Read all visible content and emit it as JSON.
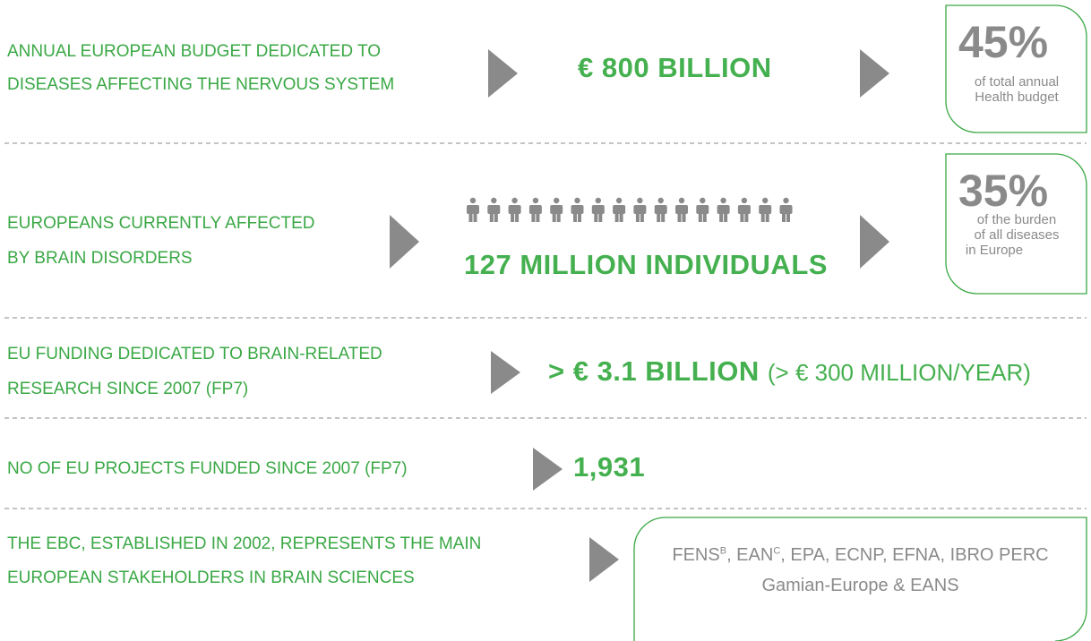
{
  "rows": [
    {
      "label": [
        "ANNUAL EUROPEAN BUDGET DEDICATED TO",
        "DISEASES AFFECTING THE NERVOUS SYSTEM"
      ],
      "value": "€ 800 BILLION",
      "badge": {
        "big": "45%",
        "lines": [
          "of total annual",
          "Health budget"
        ]
      }
    },
    {
      "label": [
        "EUROPEANS CURRENTLY AFFECTED",
        "BY BRAIN DISORDERS"
      ],
      "value": "127 MILLION INDIVIDUALS",
      "badge": {
        "big": "35%",
        "lines": [
          "of the burden",
          "of all diseases",
          "in Europe"
        ]
      }
    },
    {
      "label": [
        "EU FUNDING DEDICATED TO BRAIN-RELATED",
        "RESEARCH SINCE 2007 (FP7)"
      ],
      "value": "> € 3.1 BILLION",
      "value_note": "(> € 300 MILLION/YEAR)"
    },
    {
      "label": [
        "NO OF EU PROJECTS FUNDED SINCE 2007 (FP7)"
      ],
      "value": "1,931"
    },
    {
      "label": [
        "THE EBC, ESTABLISHED IN 2002, REPRESENTS THE MAIN",
        "EUROPEAN STAKEHOLDERS IN BRAIN SCIENCES"
      ],
      "members": {
        "line1": [
          "FENS",
          "B",
          ", EAN",
          "C",
          ", EPA, ECNP, EFNA, IBRO PERC"
        ],
        "line2": "Gamian-Europe & EANS"
      }
    }
  ]
}
